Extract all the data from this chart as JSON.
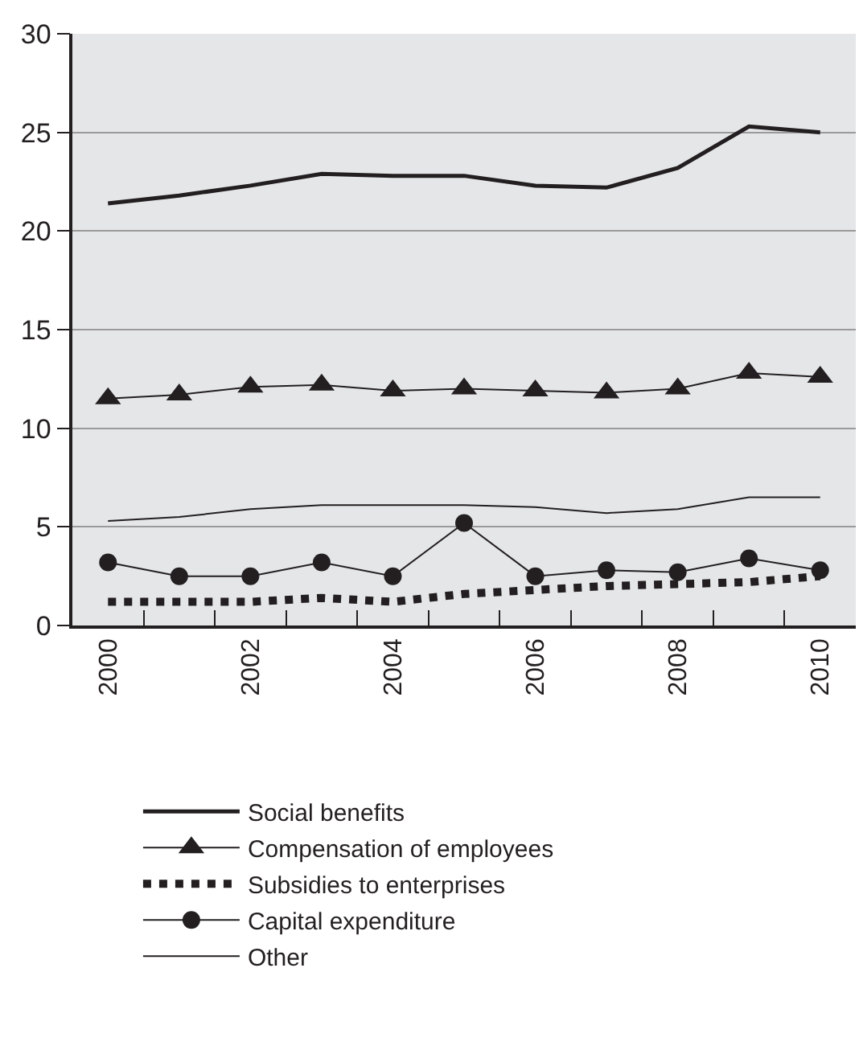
{
  "chart_data": {
    "type": "line",
    "x": [
      2000,
      2001,
      2002,
      2003,
      2004,
      2005,
      2006,
      2007,
      2008,
      2009,
      2010
    ],
    "xlim": [
      1999.5,
      2010.5
    ],
    "xticks": [
      2000,
      {
        "value": 2000.5,
        "label": null
      },
      {
        "value": 2001.5,
        "label": null
      },
      2002,
      {
        "value": 2002.5,
        "label": null
      },
      {
        "value": 2003.5,
        "label": null
      },
      2004,
      {
        "value": 2004.5,
        "label": null
      },
      {
        "value": 2005.5,
        "label": null
      },
      2006,
      {
        "value": 2006.5,
        "label": null
      },
      {
        "value": 2007.5,
        "label": null
      },
      2008,
      {
        "value": 2008.5,
        "label": null
      },
      {
        "value": 2009.5,
        "label": null
      },
      2010
    ],
    "ylim": [
      0,
      30
    ],
    "yticks": [
      0,
      5,
      10,
      15,
      20,
      25,
      30
    ],
    "grid": "y",
    "legend": "bottom",
    "series": [
      {
        "name": "Social benefits",
        "color": "#231f20",
        "line_style": "solid",
        "marker": "none",
        "values": [
          21.4,
          21.8,
          22.3,
          22.9,
          22.8,
          22.8,
          22.3,
          22.2,
          23.2,
          25.3,
          25.0
        ]
      },
      {
        "name": "Compensation of employees",
        "color": "#231f20",
        "line_style": "solid",
        "marker": "triangle",
        "values": [
          11.5,
          11.7,
          12.1,
          12.2,
          11.9,
          12.0,
          11.9,
          11.8,
          12.0,
          12.8,
          12.6
        ]
      },
      {
        "name": "Subsidies to enterprises",
        "color": "#231f20",
        "line_style": "dotted",
        "marker": "none",
        "values": [
          1.2,
          1.2,
          1.2,
          1.4,
          1.2,
          1.6,
          1.8,
          2.0,
          2.1,
          2.2,
          2.5
        ]
      },
      {
        "name": "Capital expenditure",
        "color": "#231f20",
        "line_style": "solid",
        "marker": "circle",
        "values": [
          3.2,
          2.5,
          2.5,
          3.2,
          2.5,
          5.2,
          2.5,
          2.8,
          2.7,
          3.4,
          2.8
        ]
      },
      {
        "name": "Other",
        "color": "#231f20",
        "line_style": "solid",
        "marker": "none",
        "values": [
          5.3,
          5.5,
          5.9,
          6.1,
          6.1,
          6.1,
          6.0,
          5.7,
          5.9,
          6.5,
          6.5
        ]
      }
    ]
  }
}
